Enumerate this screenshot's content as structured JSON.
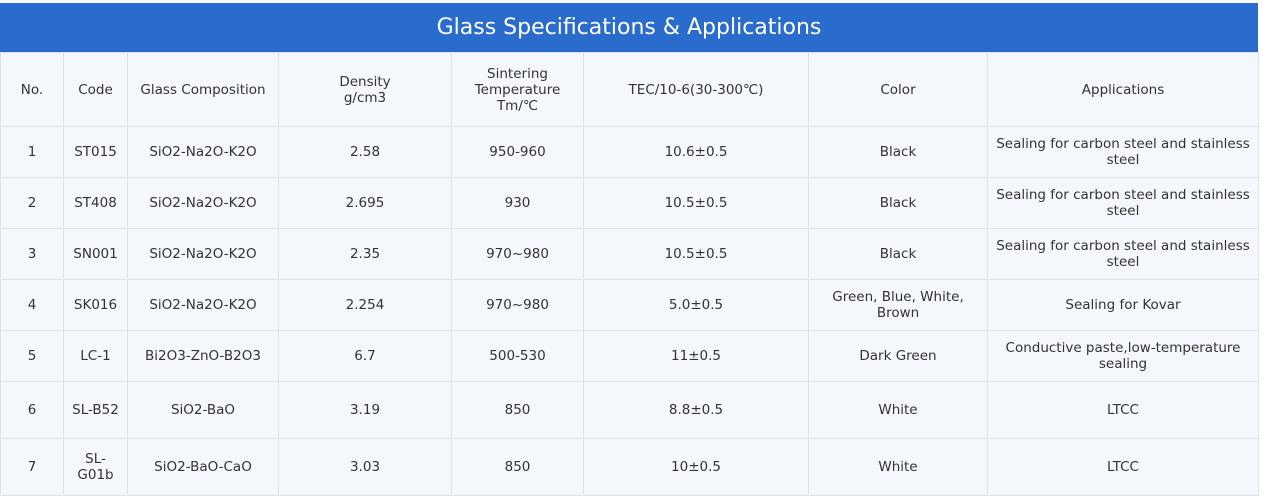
{
  "header": {
    "title": "Glass Specifications & Applications"
  },
  "table": {
    "columns": [
      "No.",
      "Code",
      "Glass Composition",
      "Density\ng/cm3",
      "Sintering\nTemperature\nTm/℃",
      "TEC/10-6(30-300℃)",
      "Color",
      "Applications"
    ],
    "rows": [
      [
        "1",
        "ST015",
        "SiO2-Na2O-K2O",
        "2.58",
        "950-960",
        "10.6±0.5",
        "Black",
        "Sealing for carbon steel and stainless steel"
      ],
      [
        "2",
        "ST408",
        "SiO2-Na2O-K2O",
        "2.695",
        "930",
        "10.5±0.5",
        "Black",
        "Sealing for carbon steel and stainless steel"
      ],
      [
        "3",
        "SN001",
        "SiO2-Na2O-K2O",
        "2.35",
        "970~980",
        "10.5±0.5",
        "Black",
        "Sealing for carbon steel and stainless steel"
      ],
      [
        "4",
        "SK016",
        "SiO2-Na2O-K2O",
        "2.254",
        "970~980",
        "5.0±0.5",
        "Green, Blue, White, Brown",
        "Sealing for Kovar"
      ],
      [
        "5",
        "LC-1",
        "Bi2O3-ZnO-B2O3",
        "6.7",
        "500-530",
        "11±0.5",
        "Dark Green",
        "Conductive paste,low-temperature sealing"
      ],
      [
        "6",
        "SL-B52",
        "SiO2-BaO",
        "3.19",
        "850",
        "8.8±0.5",
        "White",
        "LTCC"
      ],
      [
        "7",
        "SL-G01b",
        "SiO2-BaO-CaO",
        "3.03",
        "850",
        "10±0.5",
        "White",
        "LTCC"
      ]
    ]
  }
}
